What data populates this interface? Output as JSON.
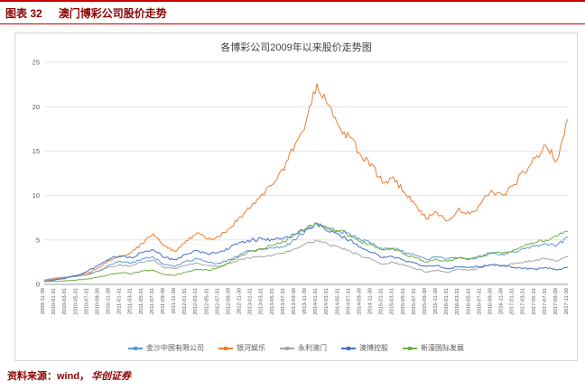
{
  "header": {
    "label": "图表 32",
    "title": "澳门博彩公司股价走势"
  },
  "chart_data": {
    "type": "line",
    "title": "各博彩公司2009年以来股价走势图",
    "ylim": [
      0,
      25
    ],
    "yticks": [
      0,
      5,
      10,
      15,
      20,
      25
    ],
    "grid": true,
    "legend_position": "bottom",
    "x_labels": [
      "2009-11-30",
      "2010-01-31",
      "2010-03-31",
      "2010-05-31",
      "2010-07-31",
      "2010-09-30",
      "2010-11-30",
      "2011-01-31",
      "2011-03-31",
      "2011-05-31",
      "2011-07-31",
      "2011-09-30",
      "2011-11-30",
      "2012-01-31",
      "2012-03-31",
      "2012-05-31",
      "2012-07-31",
      "2012-09-30",
      "2012-11-30",
      "2013-01-31",
      "2013-03-31",
      "2013-05-31",
      "2013-07-31",
      "2013-09-30",
      "2013-11-30",
      "2014-01-31",
      "2014-03-31",
      "2014-05-31",
      "2014-07-31",
      "2014-09-30",
      "2014-11-30",
      "2015-01-31",
      "2015-03-31",
      "2015-05-31",
      "2015-07-31",
      "2015-09-30",
      "2015-11-30",
      "2016-01-31",
      "2016-03-31",
      "2016-05-31",
      "2016-07-31",
      "2016-09-30",
      "2016-11-30",
      "2017-01-31",
      "2017-03-31",
      "2017-05-31",
      "2017-07-31",
      "2017-09-30",
      "2017-11-30"
    ],
    "series": [
      {
        "name": "金沙中国有限公司",
        "color": "#5B9BD5",
        "values": [
          0.5,
          0.6,
          0.75,
          0.9,
          1.1,
          1.5,
          2.2,
          2.6,
          2.4,
          2.9,
          3.1,
          2.2,
          2.0,
          2.6,
          2.9,
          2.5,
          2.4,
          2.8,
          3.4,
          3.8,
          3.9,
          4.1,
          4.3,
          5.0,
          6.2,
          6.9,
          6.3,
          6.0,
          5.7,
          5.0,
          4.6,
          3.9,
          4.1,
          3.6,
          3.3,
          2.8,
          3.1,
          2.9,
          3.0,
          2.8,
          3.1,
          3.5,
          3.4,
          3.7,
          4.0,
          4.3,
          4.6,
          4.4,
          5.3
        ]
      },
      {
        "name": "银河娱乐",
        "color": "#ED7D31",
        "values": [
          0.4,
          0.6,
          0.8,
          1.0,
          1.3,
          1.9,
          2.7,
          3.1,
          3.6,
          4.6,
          5.7,
          4.3,
          3.7,
          4.9,
          5.8,
          5.1,
          5.4,
          6.3,
          7.6,
          8.8,
          10.2,
          11.3,
          12.8,
          15.8,
          18.3,
          22.6,
          20.2,
          17.8,
          16.6,
          14.6,
          13.6,
          11.4,
          12.1,
          10.4,
          9.0,
          7.4,
          8.1,
          7.2,
          8.6,
          7.9,
          9.0,
          10.6,
          10.0,
          11.2,
          12.6,
          14.2,
          15.6,
          14.0,
          18.6
        ]
      },
      {
        "name": "永利澳门",
        "color": "#A5A5A5",
        "values": [
          0.5,
          0.7,
          0.8,
          0.9,
          1.1,
          1.5,
          2.0,
          2.2,
          2.1,
          2.5,
          2.7,
          1.9,
          1.8,
          2.2,
          2.4,
          2.1,
          2.0,
          2.4,
          2.8,
          3.0,
          3.1,
          3.3,
          3.5,
          4.0,
          4.6,
          5.0,
          4.5,
          4.2,
          3.8,
          3.2,
          2.8,
          2.3,
          2.5,
          2.1,
          1.8,
          1.4,
          1.6,
          1.3,
          1.7,
          1.6,
          1.9,
          2.2,
          2.1,
          2.3,
          2.5,
          2.7,
          2.9,
          2.6,
          3.1
        ]
      },
      {
        "name": "澳博控股",
        "color": "#4472C4",
        "values": [
          0.3,
          0.5,
          0.7,
          1.0,
          1.5,
          2.2,
          2.9,
          3.2,
          3.0,
          3.6,
          3.9,
          3.0,
          2.8,
          3.4,
          3.8,
          3.4,
          3.6,
          4.1,
          4.7,
          5.0,
          5.1,
          5.0,
          5.2,
          5.6,
          6.2,
          6.8,
          6.0,
          5.6,
          5.0,
          4.2,
          3.6,
          3.0,
          3.1,
          2.7,
          2.4,
          2.0,
          2.1,
          1.8,
          2.0,
          1.9,
          2.0,
          2.2,
          2.1,
          1.9,
          1.8,
          1.7,
          1.9,
          1.6,
          1.9
        ]
      },
      {
        "name": "新濠国际发展",
        "color": "#70AD47",
        "values": [
          0.3,
          0.35,
          0.4,
          0.5,
          0.6,
          0.8,
          1.1,
          1.3,
          1.2,
          1.5,
          1.6,
          1.1,
          1.0,
          1.4,
          1.7,
          1.6,
          1.9,
          2.5,
          3.2,
          3.8,
          4.0,
          4.4,
          4.8,
          5.6,
          6.3,
          6.8,
          6.2,
          6.0,
          5.5,
          4.8,
          4.4,
          3.9,
          4.0,
          3.4,
          3.0,
          2.5,
          2.8,
          2.6,
          3.0,
          2.9,
          3.2,
          3.6,
          3.5,
          3.9,
          4.3,
          4.7,
          5.0,
          5.4,
          6.0
        ]
      }
    ]
  },
  "footer": {
    "source_prefix": "资料来源：wind，",
    "source_issuer": "华创证券"
  }
}
